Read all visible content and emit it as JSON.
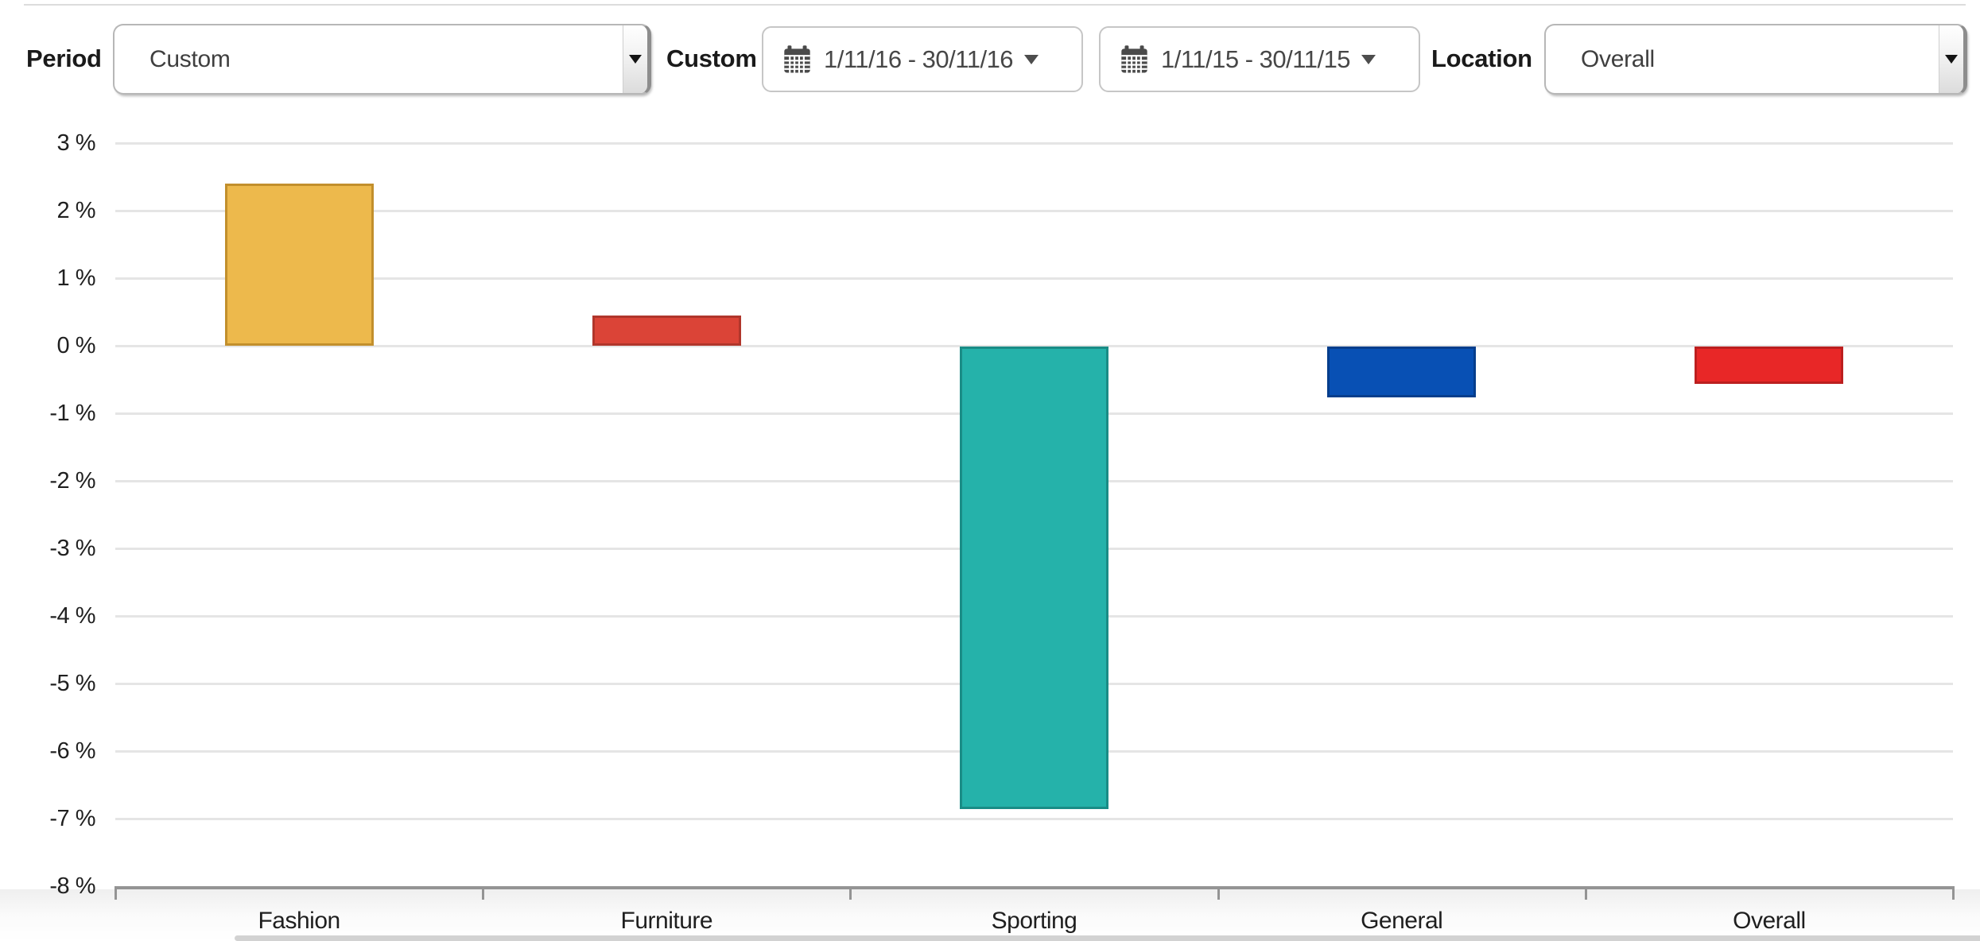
{
  "toolbar": {
    "period_label": "Period",
    "period_value": "Custom",
    "custom_label": "Custom",
    "date_range_1": "1/11/16 - 30/11/16",
    "date_range_2": "1/11/15 - 30/11/15",
    "location_label": "Location",
    "location_value": "Overall",
    "icons": {
      "calendar": "calendar-icon",
      "caret_glyph": "",
      "select_arrow": "caret-down-icon"
    }
  },
  "chart_data": {
    "type": "bar",
    "title": "",
    "xlabel": "",
    "ylabel": "",
    "categories": [
      "Fashion",
      "Furniture",
      "Sporting",
      "General",
      "Overall"
    ],
    "values": [
      2.4,
      0.45,
      -6.85,
      -0.75,
      -0.55
    ],
    "unit": "%",
    "y_ticks": [
      "3 %",
      "2 %",
      "1 %",
      "0 %",
      "-1 %",
      "-2 %",
      "-3 %",
      "-4 %",
      "-5 %",
      "-6 %",
      "-7 %",
      "-8 %"
    ],
    "y_tick_values": [
      3,
      2,
      1,
      0,
      -1,
      -2,
      -3,
      -4,
      -5,
      -6,
      -7,
      -8
    ],
    "ylim": [
      -8,
      3
    ],
    "grid": true,
    "legend": "none",
    "bar_colors": [
      "#EDB94C",
      "#DB4437",
      "#25B2AA",
      "#0850B4",
      "#E82727"
    ],
    "bar_border_colors": [
      "#C28F2C",
      "#B0362B",
      "#1A8C86",
      "#063E8C",
      "#BC1F1F"
    ],
    "gridline_color": "#e5e5e5",
    "axis_color": "#949494"
  }
}
